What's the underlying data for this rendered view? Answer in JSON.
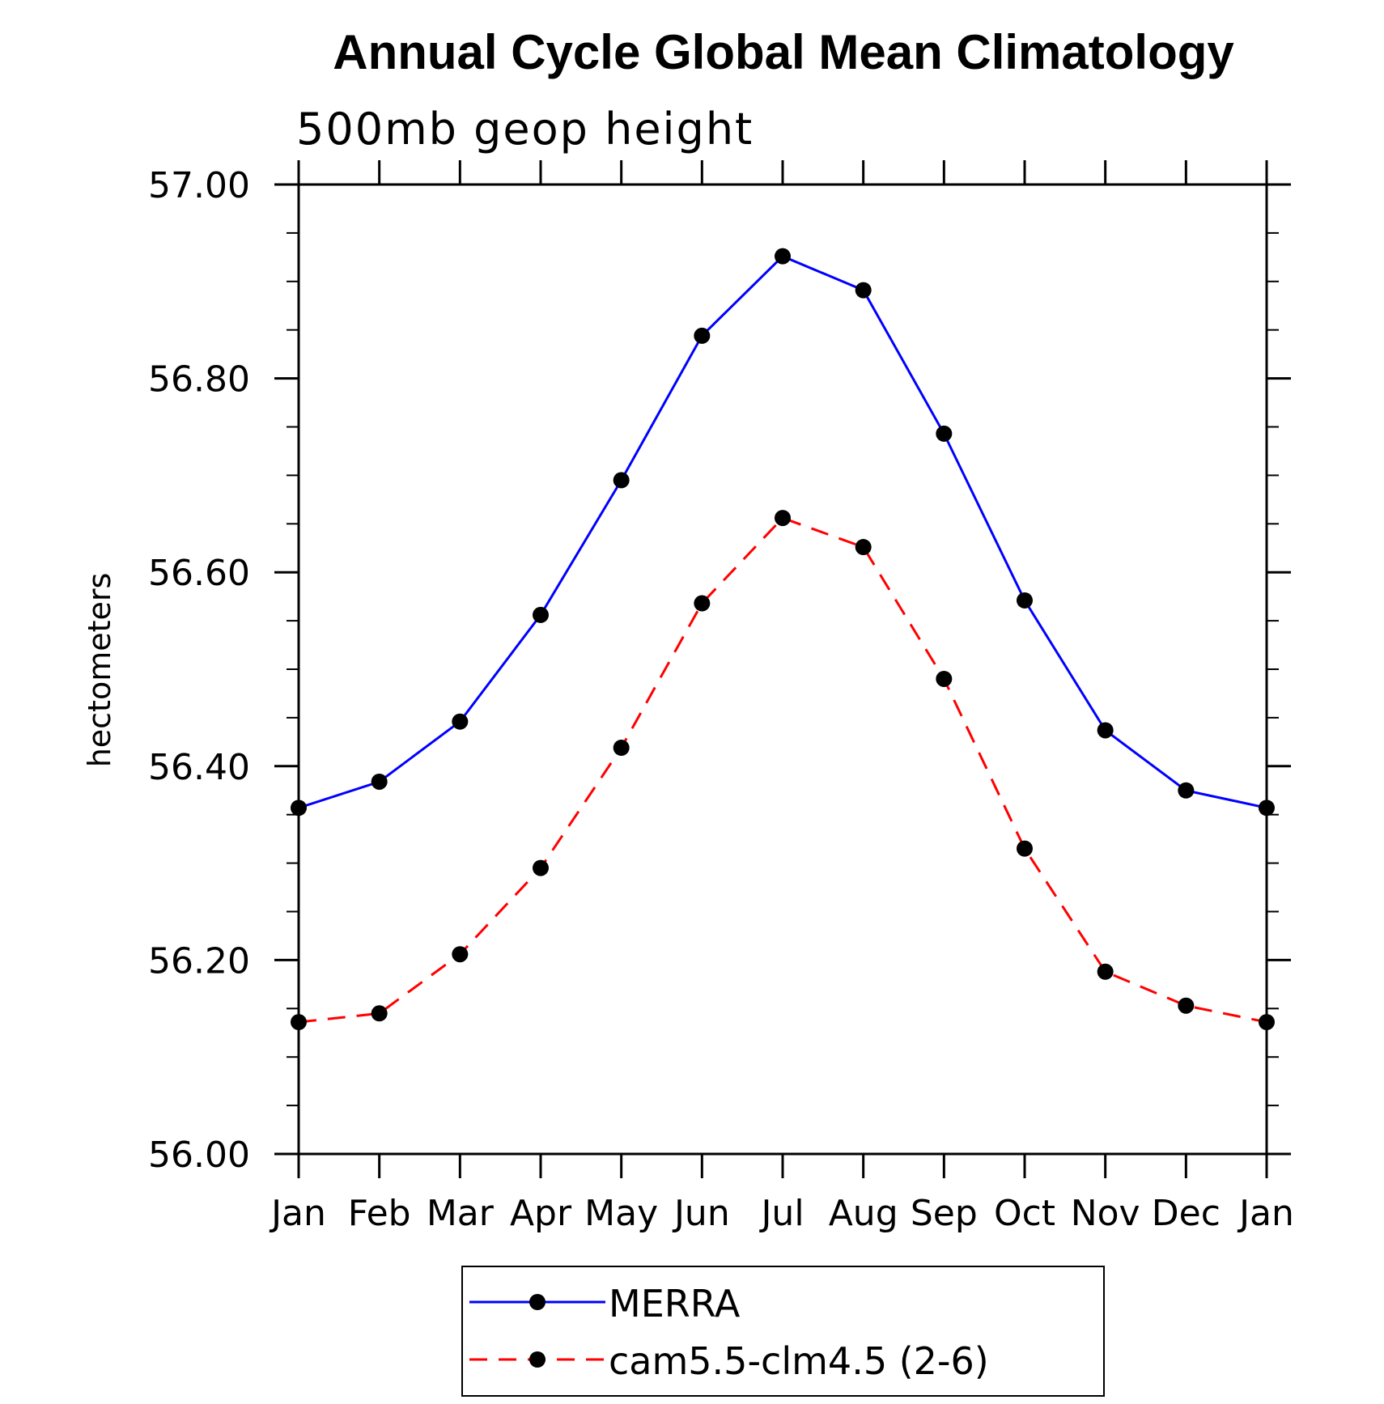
{
  "chart_data": {
    "type": "line",
    "title": "Annual Cycle Global Mean Climatology",
    "subtitle": "500mb geop height",
    "ylabel": "hectometers",
    "xlabel": "",
    "categories": [
      "Jan",
      "Feb",
      "Mar",
      "Apr",
      "May",
      "Jun",
      "Jul",
      "Aug",
      "Sep",
      "Oct",
      "Nov",
      "Dec",
      "Jan"
    ],
    "ylim": [
      56.0,
      57.0
    ],
    "yticks": [
      "56.00",
      "56.20",
      "56.40",
      "56.60",
      "56.80",
      "57.00"
    ],
    "grid": false,
    "legend_placement": "bottom",
    "series": [
      {
        "name": "MERRA",
        "color": "#0000ff",
        "dash": "solid",
        "marker": "filled-circle",
        "values": [
          56.357,
          56.384,
          56.446,
          56.556,
          56.695,
          56.844,
          56.926,
          56.891,
          56.743,
          56.571,
          56.437,
          56.375,
          56.357
        ]
      },
      {
        "name": "cam5.5-clm4.5 (2-6)",
        "color": "#ff0000",
        "dash": "dashed",
        "marker": "filled-circle",
        "values": [
          56.136,
          56.145,
          56.206,
          56.295,
          56.419,
          56.568,
          56.656,
          56.626,
          56.49,
          56.315,
          56.188,
          56.153,
          56.136
        ]
      }
    ]
  }
}
